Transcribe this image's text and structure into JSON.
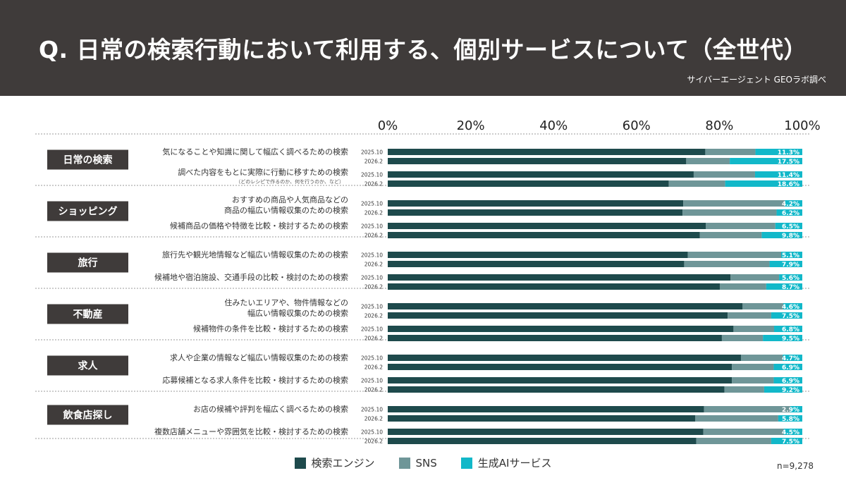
{
  "header": {
    "title": "Q. 日常の検索行動において利用する、個別サービスについて（全世代）",
    "source": "サイバーエージェント GEOラボ調べ"
  },
  "sample_size": "n=9,278",
  "colors": {
    "search": "#1e4a4c",
    "sns": "#6f9698",
    "ai": "#12b8c9"
  },
  "chart_data": {
    "type": "bar",
    "orientation": "horizontal",
    "stacked": true,
    "xlim": [
      0,
      100
    ],
    "x_ticks": [
      "0%",
      "20%",
      "40%",
      "60%",
      "80%",
      "100%"
    ],
    "legend": {
      "position": "bottom",
      "entries": [
        "検索エンジン",
        "SNS",
        "生成AIサービス"
      ]
    },
    "groups": [
      {
        "category": "日常の検索",
        "items": [
          {
            "lines": [
              "気になることや知識に関して幅広く調べるための検索"
            ],
            "bars": [
              {
                "period": "2025.10",
                "values": [
                  76.6,
                  12.1,
                  11.3
                ],
                "ai_label": "11.3%"
              },
              {
                "period": "2026.2",
                "values": [
                  72.0,
                  10.5,
                  17.5
                ],
                "ai_label": "17.5%"
              }
            ]
          },
          {
            "lines": [
              "調べた内容をもとに実際に行動に移すための検索"
            ],
            "note": "（どのレシピで作るのか、何を行うのか、など）",
            "bars": [
              {
                "period": "2025.10",
                "values": [
                  73.8,
                  14.8,
                  11.4
                ],
                "ai_label": "11.4%"
              },
              {
                "period": "2026.2",
                "values": [
                  67.8,
                  13.6,
                  18.6
                ],
                "ai_label": "18.6%"
              }
            ]
          }
        ]
      },
      {
        "category": "ショッピング",
        "items": [
          {
            "lines": [
              "おすすめの商品や人気商品などの",
              "商品の幅広い情報収集のための検索"
            ],
            "bars": [
              {
                "period": "2025.10",
                "values": [
                  71.3,
                  24.5,
                  4.2
                ],
                "ai_label": "4.2%"
              },
              {
                "period": "2026.2",
                "values": [
                  71.1,
                  22.7,
                  6.2
                ],
                "ai_label": "6.2%"
              }
            ]
          },
          {
            "lines": [
              "候補商品の価格や特徴を比較・検討するための検索"
            ],
            "bars": [
              {
                "period": "2025.10",
                "values": [
                  76.7,
                  16.8,
                  6.5
                ],
                "ai_label": "6.5%"
              },
              {
                "period": "2026.2",
                "values": [
                  75.3,
                  14.9,
                  9.8
                ],
                "ai_label": "9.8%"
              }
            ]
          }
        ]
      },
      {
        "category": "旅行",
        "items": [
          {
            "lines": [
              "旅行先や観光地情報など幅広い情報収集のための検索"
            ],
            "bars": [
              {
                "period": "2025.10",
                "values": [
                  72.4,
                  22.5,
                  5.1
                ],
                "ai_label": "5.1%"
              },
              {
                "period": "2026.2",
                "values": [
                  71.5,
                  20.6,
                  7.9
                ],
                "ai_label": "7.9%"
              }
            ]
          },
          {
            "lines": [
              "候補地や宿泊施設、交通手段の比較・検討のための検索"
            ],
            "bars": [
              {
                "period": "2025.10",
                "values": [
                  82.7,
                  11.7,
                  5.6
                ],
                "ai_label": "5.6%"
              },
              {
                "period": "2026.2",
                "values": [
                  80.1,
                  11.2,
                  8.7
                ],
                "ai_label": "8.7%"
              }
            ]
          }
        ]
      },
      {
        "category": "不動産",
        "items": [
          {
            "lines": [
              "住みたいエリアや、物件情報などの",
              "幅広い情報収集のための検索"
            ],
            "bars": [
              {
                "period": "2025.10",
                "values": [
                  85.6,
                  9.8,
                  4.6
                ],
                "ai_label": "4.6%"
              },
              {
                "period": "2026.2",
                "values": [
                  82.0,
                  10.5,
                  7.5
                ],
                "ai_label": "7.5%"
              }
            ]
          },
          {
            "lines": [
              "候補物件の条件を比較・検討するための検索"
            ],
            "bars": [
              {
                "period": "2025.10",
                "values": [
                  83.4,
                  9.8,
                  6.8
                ],
                "ai_label": "6.8%"
              },
              {
                "period": "2026.2",
                "values": [
                  80.6,
                  9.9,
                  9.5
                ],
                "ai_label": "9.5%"
              }
            ]
          }
        ]
      },
      {
        "category": "求人",
        "items": [
          {
            "lines": [
              "求人や企業の情報など幅広い情報収集のための検索"
            ],
            "bars": [
              {
                "period": "2025.10",
                "values": [
                  85.2,
                  10.1,
                  4.7
                ],
                "ai_label": "4.7%"
              },
              {
                "period": "2026.2",
                "values": [
                  83.0,
                  10.1,
                  6.9
                ],
                "ai_label": "6.9%"
              }
            ]
          },
          {
            "lines": [
              "応募候補となる求人条件を比較・検討するための検索"
            ],
            "bars": [
              {
                "period": "2025.10",
                "values": [
                  83.0,
                  10.1,
                  6.9
                ],
                "ai_label": "6.9%"
              },
              {
                "period": "2026.2",
                "values": [
                  81.2,
                  9.6,
                  9.2
                ],
                "ai_label": "9.2%"
              }
            ]
          }
        ]
      },
      {
        "category": "飲食店探し",
        "items": [
          {
            "lines": [
              "お店の候補や評判を幅広く調べるための検索"
            ],
            "bars": [
              {
                "period": "2025.10",
                "values": [
                  76.3,
                  20.8,
                  2.9
                ],
                "ai_label": "2.9%"
              },
              {
                "period": "2026.2",
                "values": [
                  74.2,
                  20.0,
                  5.8
                ],
                "ai_label": "5.8%"
              }
            ]
          },
          {
            "lines": [
              "複数店舗メニューや雰囲気を比較・検討するための検索"
            ],
            "bars": [
              {
                "period": "2025.10",
                "values": [
                  76.1,
                  19.4,
                  4.5
                ],
                "ai_label": "4.5%"
              },
              {
                "period": "2026.2",
                "values": [
                  74.4,
                  18.1,
                  7.5
                ],
                "ai_label": "7.5%"
              }
            ]
          }
        ]
      }
    ]
  }
}
